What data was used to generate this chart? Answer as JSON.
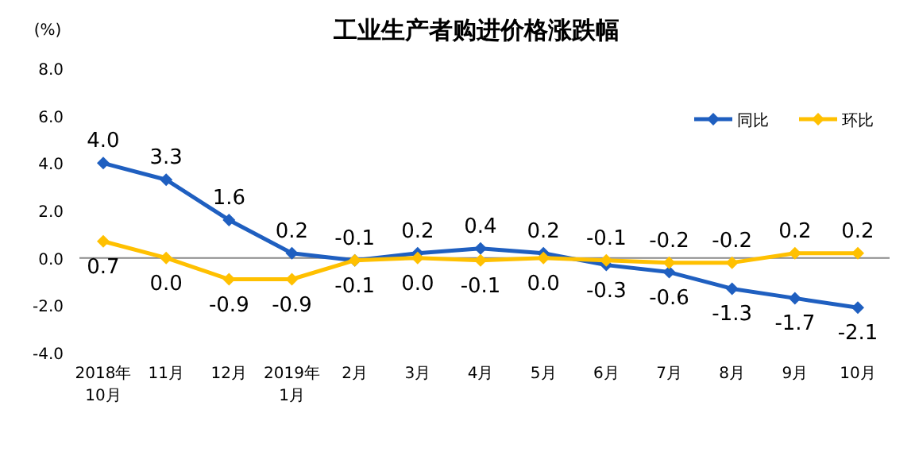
{
  "chart_data": {
    "type": "line",
    "title": "工业生产者购进价格涨跌幅",
    "ylabel": "(%)",
    "categories": [
      "2018年\n10月",
      "11月",
      "12月",
      "2019年\n1月",
      "2月",
      "3月",
      "4月",
      "5月",
      "6月",
      "7月",
      "8月",
      "9月",
      "10月"
    ],
    "series": [
      {
        "name": "同比",
        "color": "#1f5fc0",
        "values": [
          4.0,
          3.3,
          1.6,
          0.2,
          -0.1,
          0.2,
          0.4,
          0.2,
          -0.3,
          -0.6,
          -1.3,
          -1.7,
          -2.1
        ],
        "value_labels": [
          "4.0",
          "3.3",
          "1.6",
          "0.2",
          "-0.1",
          "0.2",
          "0.4",
          "0.2",
          "-0.3",
          "-0.6",
          "-1.3",
          "-1.7",
          "-2.1"
        ]
      },
      {
        "name": "环比",
        "color": "#ffc000",
        "values": [
          0.7,
          0.0,
          -0.9,
          -0.9,
          -0.1,
          0.0,
          -0.1,
          0.0,
          -0.1,
          -0.2,
          -0.2,
          0.2,
          0.2
        ],
        "value_labels": [
          "0.7",
          "0.0",
          "-0.9",
          "-0.9",
          "-0.1",
          "0.0",
          "-0.1",
          "0.0",
          "-0.1",
          "-0.2",
          "-0.2",
          "0.2",
          "0.2"
        ]
      }
    ],
    "ylim": [
      -4,
      8
    ],
    "yticks": [
      {
        "value": -4,
        "label": "-4.0"
      },
      {
        "value": -2,
        "label": "-2.0"
      },
      {
        "value": 0,
        "label": "0.0"
      },
      {
        "value": 2,
        "label": "2.0"
      },
      {
        "value": 4,
        "label": "4.0"
      },
      {
        "value": 6,
        "label": "6.0"
      },
      {
        "value": 8,
        "label": "8.0"
      }
    ],
    "marker": "diamond",
    "line_style": "solid",
    "legend": "top right"
  }
}
